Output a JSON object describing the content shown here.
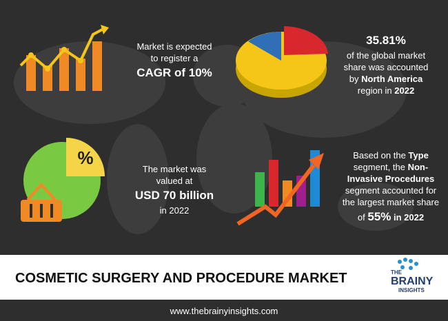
{
  "stats": [
    {
      "lines": [
        [
          {
            "text": "Market is expected"
          }
        ],
        [
          {
            "text": "to register a"
          }
        ],
        [
          {
            "text": "CAGR of 10%",
            "style": "big"
          }
        ]
      ]
    },
    {
      "lines": [
        [
          {
            "text": "35.81%",
            "style": "big"
          }
        ],
        [
          {
            "text": "of the global market"
          }
        ],
        [
          {
            "text": "share was accounted"
          }
        ],
        [
          {
            "text": "by "
          },
          {
            "text": "North America",
            "style": "bold"
          }
        ],
        [
          {
            "text": "region in "
          },
          {
            "text": "2022",
            "style": "bold"
          }
        ]
      ]
    },
    {
      "lines": [
        [
          {
            "text": "The market was"
          }
        ],
        [
          {
            "text": "valued at"
          }
        ],
        [
          {
            "text": "USD 70 billion",
            "style": "big"
          }
        ],
        [
          {
            "text": "in 2022"
          }
        ]
      ]
    },
    {
      "lines": [
        [
          {
            "text": "Based on the "
          },
          {
            "text": "Type",
            "style": "bold"
          }
        ],
        [
          {
            "text": "segment, the "
          },
          {
            "text": "Non-",
            "style": "bold"
          }
        ],
        [
          {
            "text": "Invasive Procedures",
            "style": "bold"
          }
        ],
        [
          {
            "text": "segment accounted for"
          }
        ],
        [
          {
            "text": "the largest market share"
          }
        ],
        [
          {
            "text": "of "
          },
          {
            "text": "55%",
            "style": "big"
          },
          {
            "text": " in 2022",
            "style": "bold"
          }
        ]
      ]
    }
  ],
  "icon_percent": "%",
  "title": "COSMETIC SURGERY AND PROCEDURE MARKET",
  "logo": [
    "THE",
    "BRAINY",
    "INSIGHTS"
  ],
  "footer": "www.thebrainyinsights.com"
}
